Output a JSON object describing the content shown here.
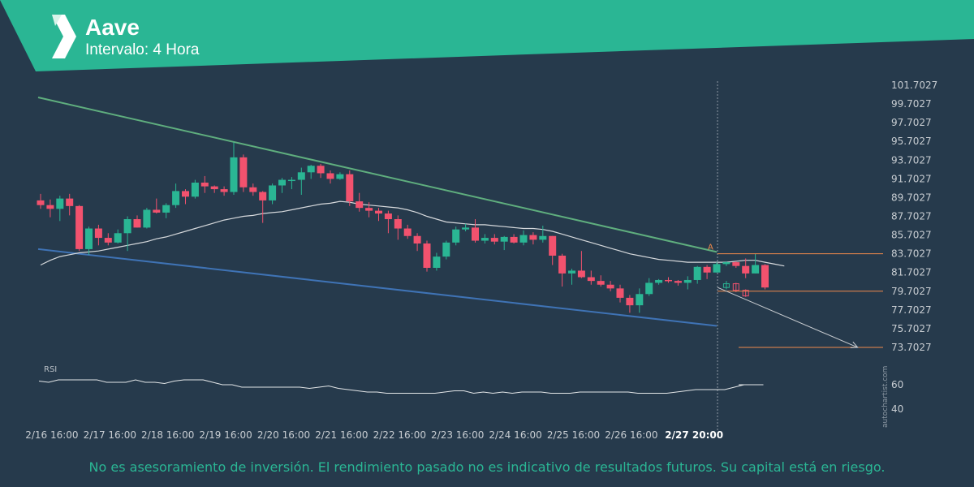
{
  "header": {
    "title": "Aave",
    "subtitle": "Intervalo: 4 Hora",
    "logo_icon": "autochartist-logo-icon"
  },
  "watermark": "autochartist.com",
  "footer": {
    "disclaimer": "No es asesoramiento de inversión. El rendimiento pasado no es indicativo de resultados futuros. Su capital está en riesgo."
  },
  "colors": {
    "background": "#263a4c",
    "header": "#2ab694",
    "bull": "#2ab694",
    "bear": "#f2526e",
    "resistance": "#5fae7e",
    "support": "#3f73b5",
    "target": "#f08a4b",
    "line": "#d6d9dc"
  },
  "chart_data": [
    {
      "type": "candlestick",
      "instrument": "Aave",
      "interval": "4 Hora",
      "y_ticks": [
        "101.7027",
        "99.7027",
        "97.7027",
        "95.7027",
        "93.7027",
        "91.7027",
        "89.7027",
        "87.7027",
        "85.7027",
        "83.7027",
        "81.7027",
        "79.7027",
        "77.7027",
        "75.7027",
        "73.7027"
      ],
      "ylim": [
        72.6,
        102.4
      ],
      "x_ticks": [
        "2/16 16:00",
        "2/17 16:00",
        "2/18 16:00",
        "2/19 16:00",
        "2/20 16:00",
        "2/21 16:00",
        "2/22 16:00",
        "2/23 16:00",
        "2/24 16:00",
        "2/25 16:00",
        "2/26 16:00",
        "2/27 20:00"
      ],
      "highlight_tick": "2/27 20:00",
      "x_tick_index": [
        1,
        7,
        13,
        19,
        25,
        31,
        37,
        43,
        49,
        55,
        61,
        68
      ],
      "candles": [
        {
          "o": 89.4,
          "h": 90.1,
          "l": 88.5,
          "c": 88.9
        },
        {
          "o": 88.9,
          "h": 89.5,
          "l": 87.6,
          "c": 88.5
        },
        {
          "o": 88.5,
          "h": 89.9,
          "l": 87.2,
          "c": 89.6
        },
        {
          "o": 89.6,
          "h": 90.1,
          "l": 87.8,
          "c": 88.8
        },
        {
          "o": 88.8,
          "h": 88.9,
          "l": 84.0,
          "c": 84.2
        },
        {
          "o": 84.2,
          "h": 86.6,
          "l": 83.6,
          "c": 86.4
        },
        {
          "o": 86.4,
          "h": 86.8,
          "l": 84.6,
          "c": 85.4
        },
        {
          "o": 85.4,
          "h": 85.9,
          "l": 84.6,
          "c": 84.9
        },
        {
          "o": 84.9,
          "h": 86.3,
          "l": 84.8,
          "c": 85.9
        },
        {
          "o": 85.9,
          "h": 87.7,
          "l": 84.0,
          "c": 87.4
        },
        {
          "o": 87.4,
          "h": 87.8,
          "l": 86.5,
          "c": 86.5
        },
        {
          "o": 86.5,
          "h": 88.6,
          "l": 86.4,
          "c": 88.4
        },
        {
          "o": 88.4,
          "h": 89.6,
          "l": 88.0,
          "c": 88.1
        },
        {
          "o": 88.1,
          "h": 89.1,
          "l": 87.5,
          "c": 88.9
        },
        {
          "o": 88.9,
          "h": 91.2,
          "l": 88.6,
          "c": 90.4
        },
        {
          "o": 90.4,
          "h": 90.6,
          "l": 89.0,
          "c": 89.8
        },
        {
          "o": 89.8,
          "h": 91.6,
          "l": 89.6,
          "c": 91.3
        },
        {
          "o": 91.3,
          "h": 92.0,
          "l": 90.2,
          "c": 90.9
        },
        {
          "o": 90.9,
          "h": 91.0,
          "l": 90.2,
          "c": 90.6
        },
        {
          "o": 90.6,
          "h": 90.9,
          "l": 89.9,
          "c": 90.3
        },
        {
          "o": 90.3,
          "h": 95.6,
          "l": 90.0,
          "c": 94.0
        },
        {
          "o": 94.0,
          "h": 94.3,
          "l": 90.3,
          "c": 90.8
        },
        {
          "o": 90.8,
          "h": 91.2,
          "l": 89.9,
          "c": 90.3
        },
        {
          "o": 90.3,
          "h": 90.4,
          "l": 87.0,
          "c": 89.4
        },
        {
          "o": 89.4,
          "h": 91.2,
          "l": 89.0,
          "c": 91.0
        },
        {
          "o": 91.0,
          "h": 91.8,
          "l": 90.2,
          "c": 91.6
        },
        {
          "o": 91.6,
          "h": 91.9,
          "l": 90.6,
          "c": 91.6
        },
        {
          "o": 91.6,
          "h": 92.9,
          "l": 90.0,
          "c": 92.4
        },
        {
          "o": 92.4,
          "h": 93.2,
          "l": 91.7,
          "c": 93.1
        },
        {
          "o": 93.1,
          "h": 93.3,
          "l": 91.8,
          "c": 92.3
        },
        {
          "o": 92.3,
          "h": 92.6,
          "l": 91.2,
          "c": 91.7
        },
        {
          "o": 91.7,
          "h": 92.4,
          "l": 91.6,
          "c": 92.2
        },
        {
          "o": 92.2,
          "h": 92.6,
          "l": 88.8,
          "c": 89.3
        },
        {
          "o": 89.3,
          "h": 90.2,
          "l": 88.2,
          "c": 88.6
        },
        {
          "o": 88.6,
          "h": 89.2,
          "l": 87.6,
          "c": 88.3
        },
        {
          "o": 88.3,
          "h": 88.6,
          "l": 87.2,
          "c": 88.0
        },
        {
          "o": 88.0,
          "h": 88.3,
          "l": 85.9,
          "c": 87.4
        },
        {
          "o": 87.4,
          "h": 87.8,
          "l": 85.2,
          "c": 86.4
        },
        {
          "o": 86.4,
          "h": 86.8,
          "l": 85.3,
          "c": 85.6
        },
        {
          "o": 85.6,
          "h": 85.9,
          "l": 84.0,
          "c": 84.8
        },
        {
          "o": 84.8,
          "h": 85.1,
          "l": 81.8,
          "c": 82.2
        },
        {
          "o": 82.2,
          "h": 83.8,
          "l": 81.9,
          "c": 83.4
        },
        {
          "o": 83.4,
          "h": 85.1,
          "l": 83.1,
          "c": 84.9
        },
        {
          "o": 84.9,
          "h": 86.6,
          "l": 84.6,
          "c": 86.3
        },
        {
          "o": 86.3,
          "h": 86.9,
          "l": 86.1,
          "c": 86.5
        },
        {
          "o": 86.5,
          "h": 87.4,
          "l": 84.9,
          "c": 85.1
        },
        {
          "o": 85.1,
          "h": 85.8,
          "l": 84.8,
          "c": 85.4
        },
        {
          "o": 85.4,
          "h": 85.8,
          "l": 84.7,
          "c": 85.0
        },
        {
          "o": 85.0,
          "h": 85.6,
          "l": 84.1,
          "c": 85.5
        },
        {
          "o": 85.5,
          "h": 85.8,
          "l": 84.8,
          "c": 84.9
        },
        {
          "o": 84.9,
          "h": 86.2,
          "l": 84.6,
          "c": 85.7
        },
        {
          "o": 85.7,
          "h": 86.0,
          "l": 84.7,
          "c": 85.2
        },
        {
          "o": 85.2,
          "h": 86.7,
          "l": 84.9,
          "c": 85.6
        },
        {
          "o": 85.6,
          "h": 85.6,
          "l": 82.5,
          "c": 83.5
        },
        {
          "o": 83.5,
          "h": 83.7,
          "l": 80.2,
          "c": 81.6
        },
        {
          "o": 81.6,
          "h": 82.1,
          "l": 80.4,
          "c": 81.9
        },
        {
          "o": 81.9,
          "h": 84.0,
          "l": 81.1,
          "c": 81.2
        },
        {
          "o": 81.2,
          "h": 81.9,
          "l": 80.4,
          "c": 80.8
        },
        {
          "o": 80.8,
          "h": 81.4,
          "l": 80.2,
          "c": 80.4
        },
        {
          "o": 80.4,
          "h": 80.8,
          "l": 79.7,
          "c": 80.0
        },
        {
          "o": 80.0,
          "h": 80.4,
          "l": 78.5,
          "c": 79.0
        },
        {
          "o": 79.0,
          "h": 79.3,
          "l": 77.4,
          "c": 78.2
        },
        {
          "o": 78.2,
          "h": 80.0,
          "l": 77.4,
          "c": 79.4
        },
        {
          "o": 79.4,
          "h": 81.1,
          "l": 79.2,
          "c": 80.6
        },
        {
          "o": 80.6,
          "h": 81.0,
          "l": 80.4,
          "c": 80.9
        },
        {
          "o": 80.9,
          "h": 81.2,
          "l": 80.6,
          "c": 80.8
        },
        {
          "o": 80.8,
          "h": 80.9,
          "l": 80.3,
          "c": 80.6
        },
        {
          "o": 80.6,
          "h": 81.3,
          "l": 79.9,
          "c": 80.9
        },
        {
          "o": 80.9,
          "h": 82.4,
          "l": 80.5,
          "c": 82.3
        },
        {
          "o": 82.3,
          "h": 82.5,
          "l": 81.0,
          "c": 81.7
        },
        {
          "o": 81.7,
          "h": 82.8,
          "l": 81.7,
          "c": 82.6
        },
        {
          "o": 82.6,
          "h": 82.9,
          "l": 82.4,
          "c": 82.8
        },
        {
          "o": 82.8,
          "h": 82.9,
          "l": 82.2,
          "c": 82.4
        },
        {
          "o": 82.4,
          "h": 83.2,
          "l": 81.1,
          "c": 81.6
        },
        {
          "o": 81.6,
          "h": 83.7,
          "l": 81.6,
          "c": 82.5
        },
        {
          "o": 82.5,
          "h": 82.6,
          "l": 79.9,
          "c": 80.1
        }
      ],
      "projection_candles": [
        {
          "o": 80.1,
          "h": 80.8,
          "l": 79.9,
          "c": 80.5
        },
        {
          "o": 80.5,
          "h": 80.6,
          "l": 79.6,
          "c": 79.8
        },
        {
          "o": 79.8,
          "h": 79.9,
          "l": 79.1,
          "c": 79.2
        }
      ],
      "moving_average": [
        82.5,
        83.0,
        83.4,
        83.6,
        83.8,
        83.9,
        84.0,
        84.2,
        84.4,
        84.6,
        84.8,
        85.0,
        85.3,
        85.5,
        85.8,
        86.1,
        86.4,
        86.7,
        87.0,
        87.3,
        87.5,
        87.7,
        87.8,
        88.0,
        88.1,
        88.2,
        88.4,
        88.6,
        88.8,
        89.0,
        89.1,
        89.3,
        89.2,
        89.0,
        88.9,
        88.8,
        88.7,
        88.6,
        88.4,
        88.1,
        87.7,
        87.4,
        87.1,
        87.0,
        86.9,
        86.8,
        86.8,
        86.7,
        86.6,
        86.5,
        86.4,
        86.4,
        86.3,
        86.1,
        85.8,
        85.5,
        85.2,
        84.9,
        84.6,
        84.3,
        84.0,
        83.7,
        83.5,
        83.3,
        83.1,
        83.0,
        82.9,
        82.8,
        82.8,
        82.8,
        82.8,
        82.8,
        82.9,
        83.0,
        83.0,
        82.8,
        82.6,
        82.4
      ],
      "resistance_line": {
        "from": [
          0,
          100.4
        ],
        "to": [
          70,
          83.9
        ]
      },
      "support_line": {
        "from": [
          0,
          84.2
        ],
        "to": [
          70,
          76.0
        ]
      },
      "breakout_label": "A",
      "target_levels": [
        "83.7027",
        "79.7027",
        "73.7027"
      ],
      "projection_arrow": {
        "from": [
          70.1,
          80.1
        ],
        "to": [
          84.6,
          73.7
        ]
      },
      "rsi": {
        "label": "RSI",
        "ticks": [
          "60",
          "40"
        ],
        "ylim": [
          33,
          75
        ],
        "values": [
          63,
          62,
          64,
          64,
          64,
          64,
          64,
          62,
          62,
          62,
          64,
          62,
          62,
          61,
          63,
          64,
          64,
          64,
          62,
          60,
          60,
          58,
          58,
          58,
          58,
          58,
          58,
          58,
          57,
          58,
          59,
          57,
          56,
          55,
          54,
          54,
          53,
          53,
          53,
          53,
          53,
          53,
          54,
          55,
          55,
          53,
          54,
          53,
          54,
          53,
          54,
          54,
          54,
          53,
          53,
          53,
          54,
          54,
          54,
          54,
          54,
          54,
          53,
          53,
          53,
          53,
          54,
          55,
          56,
          56,
          56,
          56,
          58,
          60,
          60,
          60
        ]
      }
    }
  ]
}
